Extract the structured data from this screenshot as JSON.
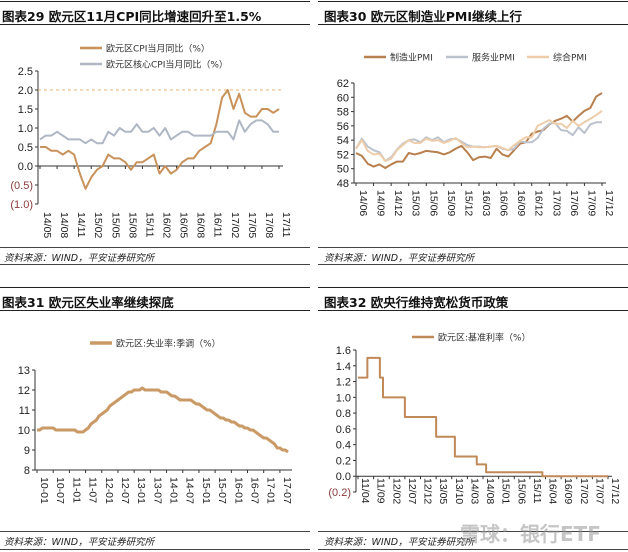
{
  "source_label": "资料来源：WIND，平安证券研究所",
  "watermark": "雪球：银行ETF",
  "chart_data": [
    {
      "type": "line",
      "title": "图表29    欧元区11月CPI同比增速回升至1.5%",
      "source": "资料来源：WIND，平安证券研究所",
      "ylim": [
        -1.0,
        2.5
      ],
      "yticks": [
        "2.5",
        "2.0",
        "1.5",
        "1.0",
        "0.5",
        "0.0",
        "(0.5)",
        "(1.0)"
      ],
      "ytick_values": [
        2.5,
        2.0,
        1.5,
        1.0,
        0.5,
        0.0,
        -0.5,
        -1.0
      ],
      "reference_line": 2.0,
      "xticks": [
        "14/05",
        "14/08",
        "14/11",
        "15/02",
        "15/05",
        "15/08",
        "15/11",
        "16/02",
        "16/05",
        "16/08",
        "16/11",
        "17/02",
        "17/05",
        "17/08",
        "17/11"
      ],
      "xtick_every": 3,
      "grid": false,
      "legend": "top",
      "series": [
        {
          "name": "欧元区CPI当月同比（%）",
          "color": "#C8925A",
          "values": [
            0.5,
            0.5,
            0.4,
            0.4,
            0.3,
            0.4,
            0.3,
            -0.2,
            -0.6,
            -0.3,
            -0.1,
            0.0,
            0.3,
            0.2,
            0.2,
            0.1,
            -0.1,
            0.1,
            0.1,
            0.2,
            0.3,
            -0.2,
            0.0,
            -0.2,
            -0.1,
            0.1,
            0.2,
            0.2,
            0.4,
            0.5,
            0.6,
            1.1,
            1.8,
            2.0,
            1.5,
            1.9,
            1.4,
            1.3,
            1.3,
            1.5,
            1.5,
            1.4,
            1.5
          ]
        },
        {
          "name": "欧元区核心CPI当月同比（%）",
          "color": "#AEB7C3",
          "values": [
            0.7,
            0.8,
            0.8,
            0.9,
            0.8,
            0.7,
            0.7,
            0.7,
            0.6,
            0.7,
            0.6,
            0.6,
            0.9,
            0.8,
            1.0,
            0.9,
            0.9,
            1.1,
            0.9,
            0.9,
            1.0,
            0.8,
            1.0,
            0.7,
            0.8,
            0.9,
            0.9,
            0.8,
            0.8,
            0.8,
            0.8,
            0.9,
            0.9,
            0.9,
            0.7,
            1.2,
            0.9,
            1.1,
            1.2,
            1.2,
            1.1,
            0.9,
            0.9
          ]
        }
      ]
    },
    {
      "type": "line",
      "title": "图表30    欧元区制造业PMI继续上行",
      "source": "资料来源：WIND，平安证券研究所",
      "ylim": [
        48,
        62
      ],
      "yticks": [
        "62",
        "60",
        "58",
        "56",
        "54",
        "52",
        "50",
        "48"
      ],
      "ytick_values": [
        62,
        60,
        58,
        56,
        54,
        52,
        50,
        48
      ],
      "xticks": [
        "14/06",
        "14/09",
        "14/12",
        "15/03",
        "15/06",
        "15/09",
        "15/12",
        "16/03",
        "16/06",
        "16/09",
        "16/12",
        "17/03",
        "17/06",
        "17/09",
        "17/12"
      ],
      "xtick_every": 3,
      "grid": false,
      "legend": "top",
      "series": [
        {
          "name": "制造业PMI",
          "color": "#B8804E",
          "values": [
            52.2,
            51.8,
            50.7,
            50.3,
            50.6,
            50.1,
            50.6,
            51.0,
            51.0,
            52.2,
            52.0,
            52.2,
            52.5,
            52.4,
            52.3,
            52.0,
            52.3,
            52.8,
            53.2,
            52.3,
            51.2,
            51.6,
            51.7,
            51.5,
            52.8,
            52.0,
            51.7,
            52.6,
            53.5,
            53.7,
            54.9,
            55.2,
            55.4,
            56.2,
            56.7,
            57.0,
            57.4,
            56.6,
            57.4,
            58.1,
            58.5,
            60.1,
            60.6
          ]
        },
        {
          "name": "服务业PMI",
          "color": "#BCC2CC",
          "values": [
            52.8,
            54.2,
            53.1,
            52.6,
            52.3,
            51.1,
            51.6,
            52.7,
            53.5,
            54.0,
            54.1,
            53.7,
            54.4,
            54.0,
            54.4,
            53.7,
            54.1,
            54.2,
            53.8,
            53.3,
            53.1,
            53.1,
            53.0,
            53.1,
            53.2,
            52.8,
            52.6,
            52.8,
            53.8,
            53.7,
            53.7,
            54.3,
            55.6,
            56.3,
            56.4,
            55.4,
            55.3,
            54.7,
            55.8,
            55.0,
            56.2,
            56.5,
            56.5
          ]
        },
        {
          "name": "综合PMI",
          "color": "#EDCDAA",
          "values": [
            52.8,
            54.0,
            52.5,
            52.0,
            52.1,
            51.1,
            51.4,
            52.6,
            53.3,
            54.0,
            53.6,
            53.6,
            54.2,
            53.9,
            54.0,
            53.6,
            53.9,
            54.3,
            53.6,
            53.0,
            53.1,
            53.0,
            53.0,
            53.1,
            53.2,
            52.9,
            52.6,
            53.3,
            53.9,
            54.4,
            54.4,
            56.0,
            56.4,
            56.8,
            56.3,
            56.3,
            55.7,
            56.7,
            56.0,
            56.5,
            57.0,
            57.5,
            58.1
          ]
        }
      ]
    },
    {
      "type": "line",
      "title": "图表31    欧元区失业率继续探底",
      "source": "资料来源：WIND，平安证券研究所",
      "ylim": [
        8,
        13
      ],
      "yticks": [
        "13",
        "12",
        "11",
        "10",
        "9",
        "8"
      ],
      "ytick_values": [
        13,
        12,
        11,
        10,
        9,
        8
      ],
      "xticks": [
        "10-01",
        "10-07",
        "11-01",
        "11-07",
        "12-01",
        "12-07",
        "13-01",
        "13-07",
        "14-01",
        "14-07",
        "15-01",
        "15-07",
        "16-01",
        "16-07",
        "17-01",
        "17-07"
      ],
      "xtick_every": 6,
      "grid": false,
      "legend": "top",
      "series": [
        {
          "name": "欧元区:失业率:季调（%）",
          "color": "#C99A66",
          "values": [
            10.0,
            10.0,
            10.1,
            10.1,
            10.1,
            10.1,
            10.1,
            10.0,
            10.0,
            10.0,
            10.0,
            10.0,
            10.0,
            10.0,
            10.0,
            9.9,
            9.9,
            9.9,
            10.0,
            10.1,
            10.3,
            10.4,
            10.5,
            10.7,
            10.8,
            10.9,
            11.0,
            11.2,
            11.3,
            11.4,
            11.5,
            11.6,
            11.7,
            11.8,
            11.9,
            11.9,
            12.0,
            12.0,
            12.0,
            12.1,
            12.0,
            12.0,
            12.0,
            12.0,
            12.0,
            12.0,
            11.9,
            11.9,
            11.9,
            11.8,
            11.7,
            11.7,
            11.6,
            11.5,
            11.5,
            11.5,
            11.5,
            11.5,
            11.4,
            11.3,
            11.3,
            11.2,
            11.1,
            11.0,
            11.0,
            10.9,
            10.8,
            10.7,
            10.6,
            10.6,
            10.5,
            10.5,
            10.4,
            10.4,
            10.3,
            10.2,
            10.2,
            10.1,
            10.1,
            10.0,
            10.0,
            9.9,
            9.8,
            9.7,
            9.6,
            9.6,
            9.5,
            9.4,
            9.3,
            9.1,
            9.1,
            9.0,
            9.0,
            8.9
          ]
        }
      ]
    },
    {
      "type": "line",
      "step": true,
      "title": "图表32    欧央行维持宽松货币政策",
      "source": "资料来源：WIND，平安证券研究所",
      "ylim": [
        -0.2,
        1.6
      ],
      "yticks": [
        "1.6",
        "1.4",
        "1.2",
        "1.0",
        "0.8",
        "0.6",
        "0.4",
        "0.2",
        "0.0",
        "(0.2)"
      ],
      "ytick_values": [
        1.6,
        1.4,
        1.2,
        1.0,
        0.8,
        0.6,
        0.4,
        0.2,
        0.0,
        -0.2
      ],
      "xticks": [
        "11/04",
        "11/09",
        "12/02",
        "12/07",
        "12/12",
        "13/05",
        "13/10",
        "14/03",
        "14/08",
        "15/01",
        "15/06",
        "15/11",
        "16/04",
        "16/09",
        "17/02",
        "17/07",
        "17/12"
      ],
      "xtick_every": 5,
      "grid": false,
      "legend": "top",
      "series": [
        {
          "name": "欧元区:基准利率（%）",
          "color": "#C08A58",
          "values": [
            1.25,
            1.25,
            1.25,
            1.5,
            1.5,
            1.5,
            1.5,
            1.25,
            1.0,
            1.0,
            1.0,
            1.0,
            1.0,
            1.0,
            1.0,
            0.75,
            0.75,
            0.75,
            0.75,
            0.75,
            0.75,
            0.75,
            0.75,
            0.75,
            0.75,
            0.5,
            0.5,
            0.5,
            0.5,
            0.5,
            0.5,
            0.25,
            0.25,
            0.25,
            0.25,
            0.25,
            0.25,
            0.25,
            0.15,
            0.15,
            0.15,
            0.05,
            0.05,
            0.05,
            0.05,
            0.05,
            0.05,
            0.05,
            0.05,
            0.05,
            0.05,
            0.05,
            0.05,
            0.05,
            0.05,
            0.05,
            0.05,
            0.05,
            0.05,
            0,
            0,
            0,
            0,
            0,
            0,
            0,
            0,
            0,
            0,
            0,
            0,
            0,
            0,
            0,
            0,
            0,
            0,
            0,
            0,
            0,
            0
          ]
        }
      ]
    }
  ]
}
